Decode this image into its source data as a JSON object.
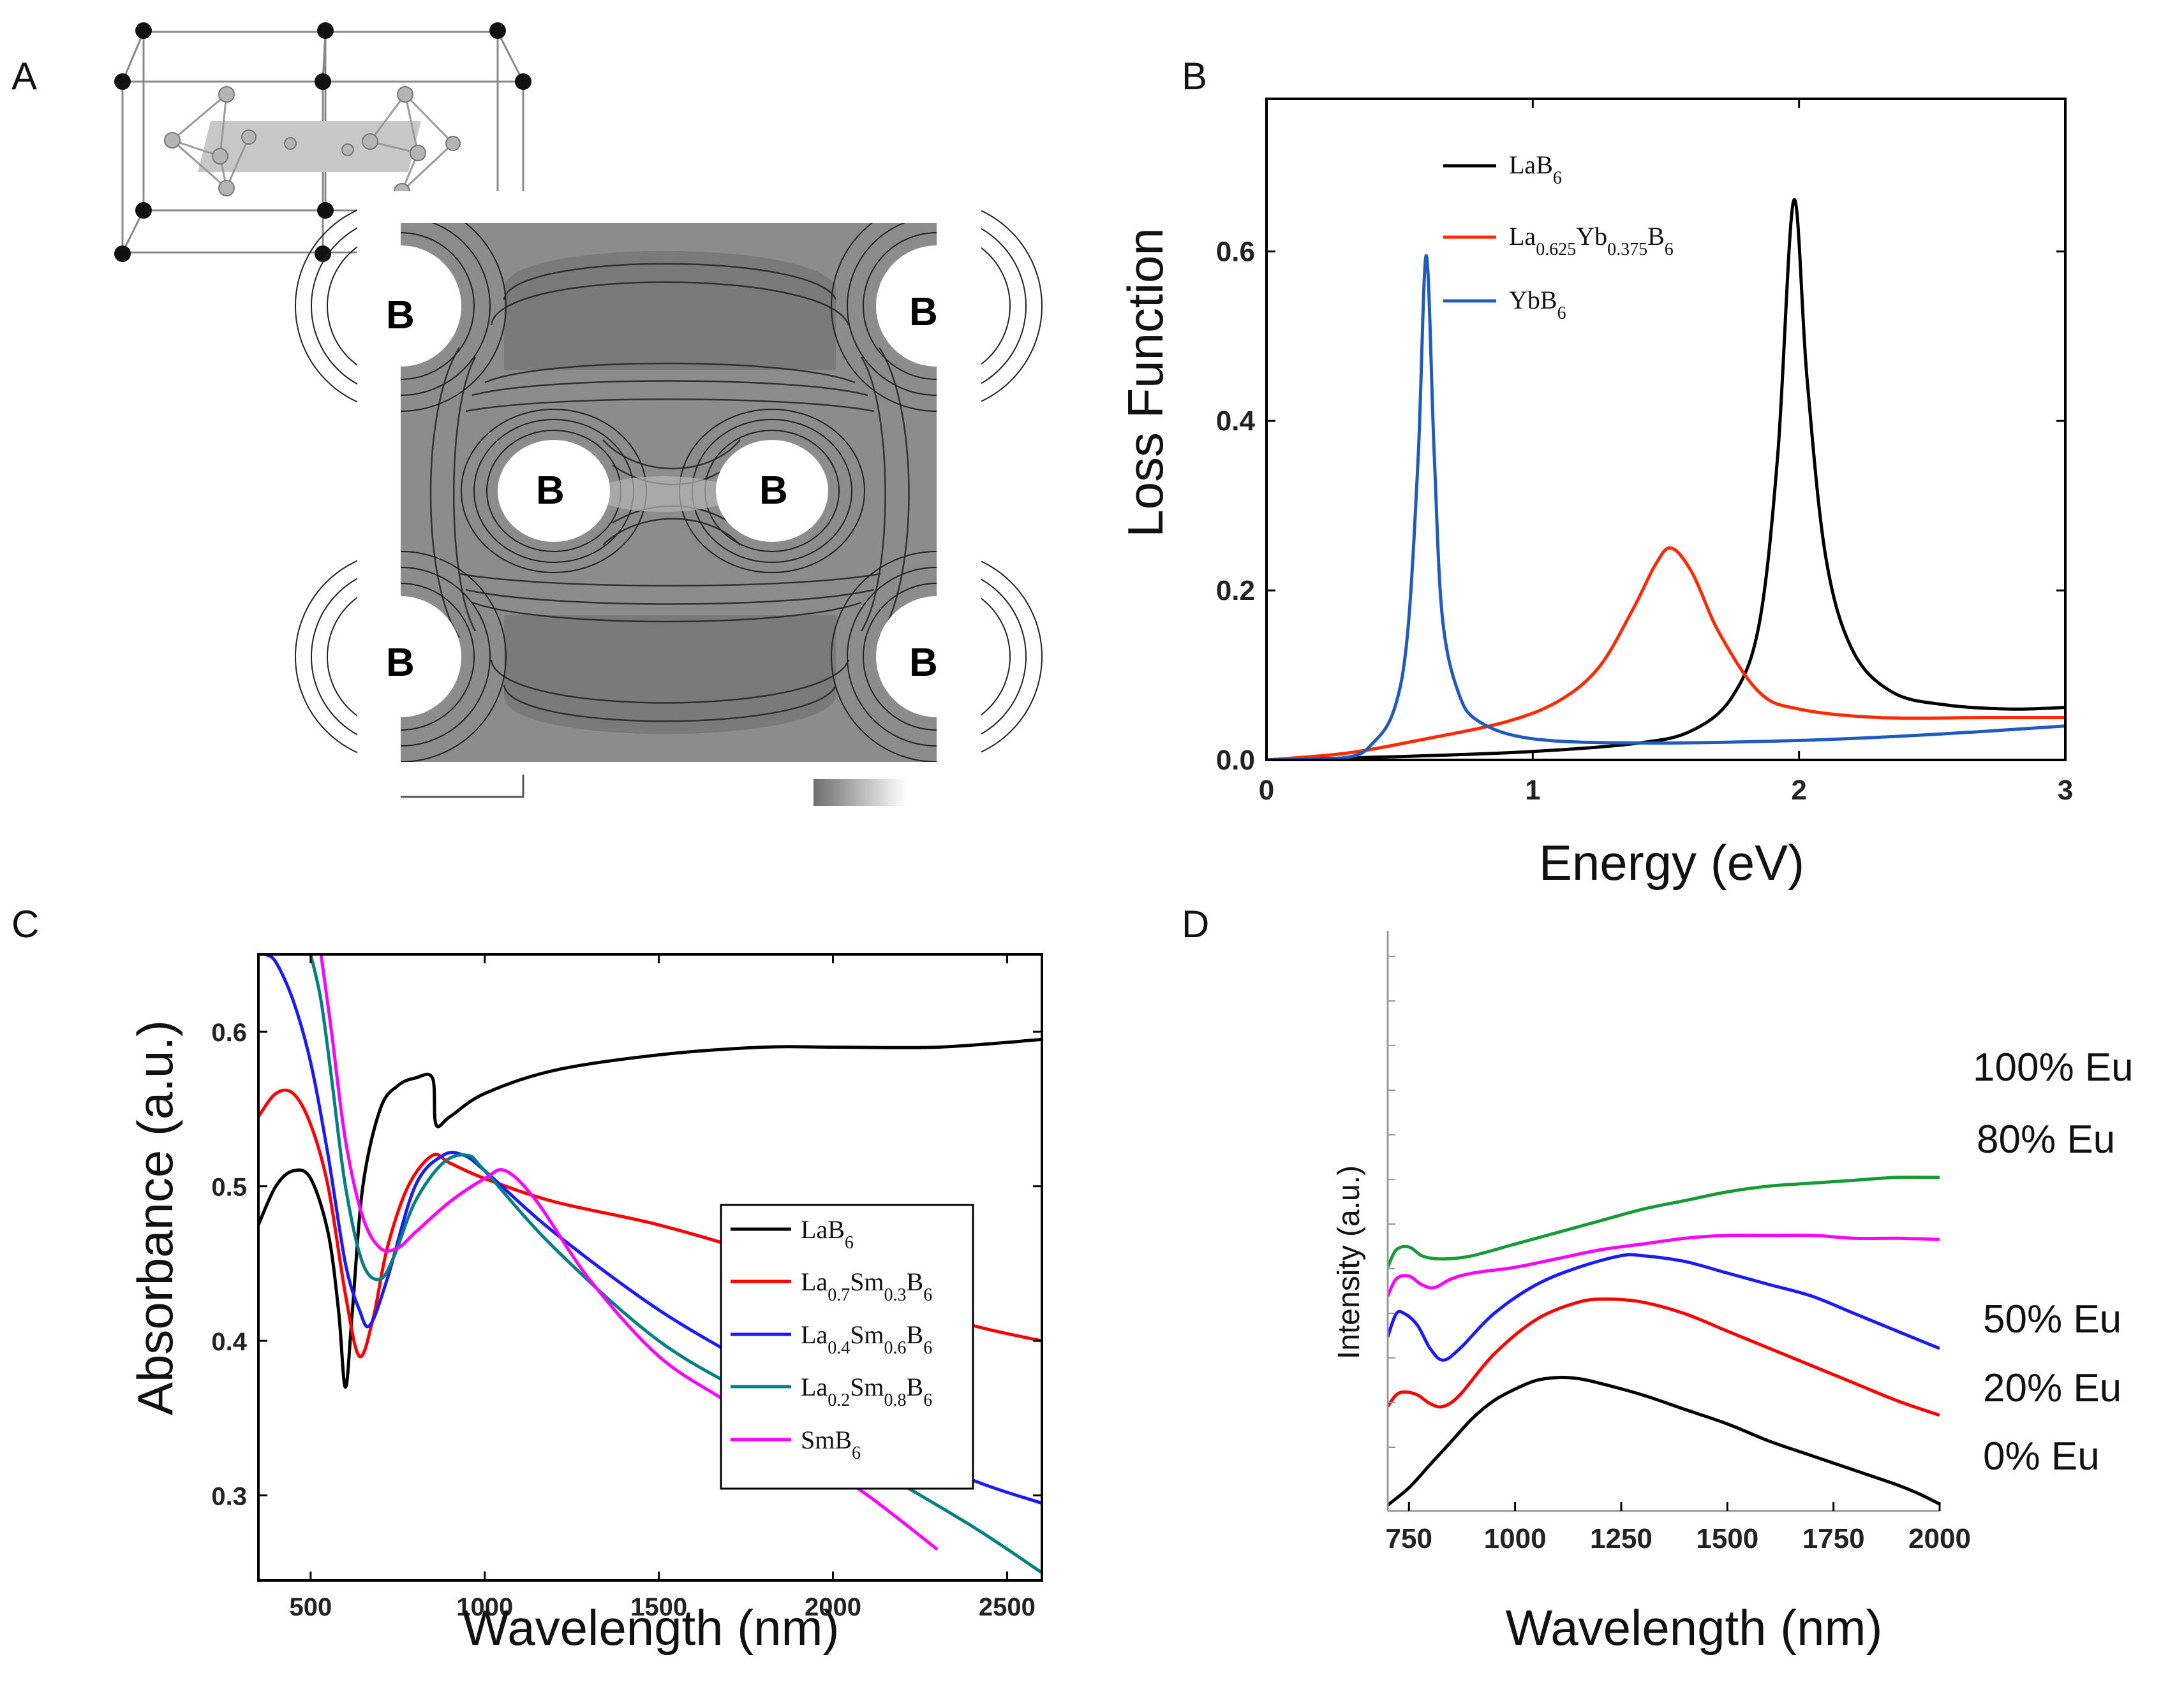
{
  "panels": {
    "A": {
      "label": "A",
      "atom_labels": [
        "B",
        "B",
        "B",
        "B",
        "B",
        "B"
      ]
    },
    "B": {
      "label": "B"
    },
    "C": {
      "label": "C"
    },
    "D": {
      "label": "D"
    }
  },
  "chart_data": [
    {
      "id": "B",
      "type": "line",
      "xlabel": "Energy (eV)",
      "ylabel": "Loss Function",
      "xlim": [
        0,
        3
      ],
      "ylim": [
        0,
        0.78
      ],
      "xticks": [
        "0",
        "1",
        "2",
        "3"
      ],
      "xtick_values": [
        0,
        1,
        2,
        3
      ],
      "yticks": [
        "0.0",
        "0.2",
        "0.4",
        "0.6"
      ],
      "ytick_values": [
        0,
        0.2,
        0.4,
        0.6
      ],
      "series": [
        {
          "name": "LaB6",
          "legend": {
            "main": "LaB",
            "sub": "6",
            "tail": ""
          },
          "color": "#000000",
          "x": [
            0,
            0.5,
            1.0,
            1.4,
            1.6,
            1.75,
            1.85,
            1.92,
            1.98,
            2.03,
            2.1,
            2.2,
            2.35,
            2.55,
            2.8,
            3.0
          ],
          "y": [
            0,
            0.004,
            0.01,
            0.02,
            0.035,
            0.075,
            0.16,
            0.36,
            0.66,
            0.45,
            0.24,
            0.13,
            0.08,
            0.065,
            0.06,
            0.062
          ]
        },
        {
          "name": "La0.625Yb0.375B6",
          "legend": {
            "main": "La",
            "sub": "0.625",
            "main2": "Yb",
            "sub2": "0.375",
            "main3": "B",
            "sub3": "6"
          },
          "color": "#ff2a00",
          "x": [
            0,
            0.3,
            0.6,
            0.9,
            1.1,
            1.25,
            1.38,
            1.46,
            1.52,
            1.6,
            1.7,
            1.85,
            2.0,
            2.3,
            2.7,
            3.0
          ],
          "y": [
            0,
            0.008,
            0.025,
            0.045,
            0.07,
            0.11,
            0.18,
            0.23,
            0.25,
            0.22,
            0.15,
            0.08,
            0.06,
            0.05,
            0.05,
            0.05
          ]
        },
        {
          "name": "YbB6",
          "legend": {
            "main": "YbB",
            "sub": "6",
            "tail": ""
          },
          "color": "#1f5bbf",
          "x": [
            0,
            0.3,
            0.4,
            0.48,
            0.53,
            0.57,
            0.6,
            0.63,
            0.66,
            0.72,
            0.8,
            1.0,
            1.4,
            2.0,
            2.5,
            3.0
          ],
          "y": [
            0,
            0.003,
            0.02,
            0.06,
            0.15,
            0.36,
            0.595,
            0.36,
            0.17,
            0.08,
            0.045,
            0.025,
            0.02,
            0.023,
            0.03,
            0.04
          ]
        }
      ]
    },
    {
      "id": "C",
      "type": "line",
      "xlabel": "Wavelength (nm)",
      "ylabel": "Absorbance (a.u.)",
      "xlim": [
        350,
        2600
      ],
      "ylim": [
        0.245,
        0.65
      ],
      "xticks": [
        "500",
        "1000",
        "1500",
        "2000",
        "2500"
      ],
      "xtick_values": [
        500,
        1000,
        1500,
        2000,
        2500
      ],
      "yticks": [
        "0.3",
        "0.4",
        "0.5",
        "0.6"
      ],
      "ytick_values": [
        0.3,
        0.4,
        0.5,
        0.6
      ],
      "series": [
        {
          "name": "LaB6",
          "legend": {
            "main": "LaB",
            "sub": "6",
            "tail": ""
          },
          "color": "#000000",
          "x": [
            350,
            400,
            450,
            500,
            550,
            580,
            600,
            620,
            650,
            700,
            750,
            800,
            850,
            860,
            900,
            1000,
            1200,
            1500,
            1800,
            2000,
            2300,
            2600
          ],
          "y": [
            0.475,
            0.5,
            0.51,
            0.505,
            0.47,
            0.42,
            0.37,
            0.42,
            0.5,
            0.55,
            0.565,
            0.57,
            0.57,
            0.54,
            0.545,
            0.56,
            0.575,
            0.585,
            0.59,
            0.59,
            0.59,
            0.595
          ]
        },
        {
          "name": "La0.7Sm0.3B6",
          "legend": {
            "main": "La",
            "sub": "0.7",
            "main2": "Sm",
            "sub2": "0.3",
            "main3": "B",
            "sub3": "6"
          },
          "color": "#ff0000",
          "x": [
            350,
            400,
            450,
            500,
            550,
            600,
            640,
            680,
            720,
            780,
            850,
            900,
            1000,
            1200,
            1500,
            1800,
            2100,
            2400,
            2600
          ],
          "y": [
            0.545,
            0.56,
            0.56,
            0.54,
            0.5,
            0.43,
            0.39,
            0.415,
            0.46,
            0.5,
            0.52,
            0.515,
            0.505,
            0.49,
            0.475,
            0.455,
            0.43,
            0.41,
            0.4
          ]
        },
        {
          "name": "La0.4Sm0.6B6",
          "legend": {
            "main": "La",
            "sub": "0.4",
            "main2": "Sm",
            "sub2": "0.6",
            "main3": "B",
            "sub3": "6"
          },
          "color": "#1a1aff",
          "x": [
            370,
            400,
            450,
            500,
            550,
            600,
            640,
            670,
            720,
            800,
            880,
            940,
            1000,
            1200,
            1500,
            1800,
            2100,
            2400,
            2600
          ],
          "y": [
            0.65,
            0.645,
            0.62,
            0.58,
            0.52,
            0.45,
            0.42,
            0.41,
            0.44,
            0.5,
            0.52,
            0.52,
            0.51,
            0.47,
            0.42,
            0.38,
            0.34,
            0.31,
            0.295
          ]
        },
        {
          "name": "La0.2Sm0.8B6",
          "legend": {
            "main": "La",
            "sub": "0.2",
            "main2": "Sm",
            "sub2": "0.8",
            "main3": "B",
            "sub3": "6"
          },
          "color": "#008080",
          "x": [
            500,
            530,
            560,
            600,
            650,
            700,
            740,
            800,
            880,
            950,
            1000,
            1200,
            1500,
            1800,
            2100,
            2400,
            2600
          ],
          "y": [
            0.65,
            0.62,
            0.57,
            0.5,
            0.45,
            0.44,
            0.455,
            0.49,
            0.515,
            0.52,
            0.51,
            0.46,
            0.4,
            0.36,
            0.32,
            0.28,
            0.25
          ]
        },
        {
          "name": "SmB6",
          "legend": {
            "main": "SmB",
            "sub": "6",
            "tail": ""
          },
          "color": "#ff00ff",
          "x": [
            530,
            560,
            600,
            650,
            700,
            750,
            800,
            900,
            1000,
            1060,
            1150,
            1300,
            1500,
            1700,
            1900,
            2100,
            2300
          ],
          "y": [
            0.65,
            0.6,
            0.53,
            0.48,
            0.46,
            0.46,
            0.47,
            0.49,
            0.505,
            0.51,
            0.49,
            0.44,
            0.39,
            0.36,
            0.33,
            0.3,
            0.265
          ]
        }
      ]
    },
    {
      "id": "D",
      "type": "line",
      "xlabel": "Wavelength (nm)",
      "ylabel": "Intensity (a.u.)",
      "xlim": [
        700,
        2000
      ],
      "ylim": [
        0,
        1.0
      ],
      "xticks": [
        "750",
        "1000",
        "1250",
        "1500",
        "1750",
        "2000"
      ],
      "xtick_values": [
        750,
        1000,
        1250,
        1500,
        1750,
        2000
      ],
      "yticks": [],
      "series": [
        {
          "name": "0% Eu",
          "label": "0% Eu",
          "color": "#000000",
          "x": [
            700,
            750,
            800,
            850,
            900,
            950,
            1000,
            1050,
            1100,
            1150,
            1200,
            1300,
            1400,
            1500,
            1600,
            1700,
            1800,
            1900,
            1950,
            2000
          ],
          "y": [
            0.01,
            0.04,
            0.08,
            0.12,
            0.16,
            0.19,
            0.21,
            0.225,
            0.23,
            0.228,
            0.22,
            0.2,
            0.175,
            0.15,
            0.12,
            0.095,
            0.07,
            0.045,
            0.03,
            0.012
          ]
        },
        {
          "name": "20% Eu",
          "label": "20% Eu",
          "color": "#ff0000",
          "x": [
            700,
            720,
            740,
            770,
            800,
            830,
            870,
            950,
            1050,
            1150,
            1220,
            1300,
            1400,
            1500,
            1600,
            1700,
            1800,
            1900,
            2000
          ],
          "y": [
            0.18,
            0.2,
            0.205,
            0.2,
            0.185,
            0.18,
            0.2,
            0.27,
            0.33,
            0.36,
            0.365,
            0.36,
            0.34,
            0.31,
            0.28,
            0.25,
            0.22,
            0.19,
            0.165
          ]
        },
        {
          "name": "50% Eu",
          "label": "50% Eu",
          "color": "#1a1aff",
          "x": [
            700,
            720,
            740,
            770,
            800,
            830,
            870,
            950,
            1050,
            1150,
            1250,
            1300,
            1400,
            1500,
            1600,
            1700,
            1800,
            1900,
            2000
          ],
          "y": [
            0.3,
            0.34,
            0.34,
            0.32,
            0.28,
            0.26,
            0.28,
            0.34,
            0.39,
            0.42,
            0.44,
            0.44,
            0.43,
            0.41,
            0.39,
            0.37,
            0.34,
            0.31,
            0.28
          ]
        },
        {
          "name": "80% Eu",
          "label": "80% Eu",
          "color": "#ff00ff",
          "x": [
            700,
            720,
            750,
            780,
            810,
            850,
            900,
            1000,
            1100,
            1200,
            1300,
            1400,
            1500,
            1600,
            1700,
            1800,
            1900,
            2000
          ],
          "y": [
            0.37,
            0.4,
            0.405,
            0.39,
            0.385,
            0.4,
            0.41,
            0.42,
            0.435,
            0.45,
            0.46,
            0.47,
            0.475,
            0.475,
            0.475,
            0.47,
            0.47,
            0.468
          ]
        },
        {
          "name": "100% Eu",
          "label": "100% Eu",
          "color": "#159a36",
          "x": [
            700,
            720,
            750,
            780,
            810,
            850,
            900,
            1000,
            1100,
            1200,
            1300,
            1400,
            1500,
            1600,
            1700,
            1800,
            1900,
            2000
          ],
          "y": [
            0.42,
            0.45,
            0.455,
            0.44,
            0.435,
            0.435,
            0.44,
            0.46,
            0.48,
            0.5,
            0.52,
            0.535,
            0.55,
            0.56,
            0.565,
            0.57,
            0.575,
            0.575
          ]
        }
      ]
    }
  ]
}
